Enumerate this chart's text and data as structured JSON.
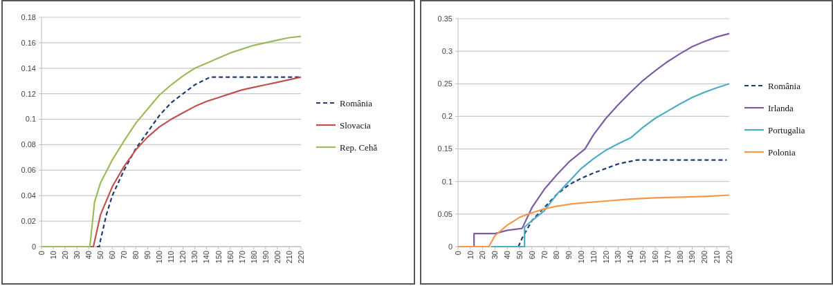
{
  "chart_data": [
    {
      "type": "line",
      "xlim": [
        0,
        220
      ],
      "xticks": [
        0,
        10,
        20,
        30,
        40,
        50,
        60,
        70,
        80,
        90,
        100,
        110,
        120,
        130,
        140,
        150,
        160,
        170,
        180,
        190,
        200,
        210,
        220
      ],
      "ylim": [
        0,
        0.18
      ],
      "yticks": [
        0,
        0.02,
        0.04,
        0.06,
        0.08,
        0.1,
        0.12,
        0.14,
        0.16,
        0.18
      ],
      "grid": "y",
      "legend": "right",
      "series": [
        {
          "name": "România",
          "color": "#1f3b70",
          "line_style": "dashed",
          "x": [
            0,
            49,
            50,
            55,
            60,
            70,
            80,
            90,
            100,
            110,
            120,
            130,
            143,
            220
          ],
          "values": [
            0,
            0,
            0.005,
            0.025,
            0.04,
            0.06,
            0.077,
            0.09,
            0.103,
            0.113,
            0.12,
            0.127,
            0.133,
            0.133
          ]
        },
        {
          "name": "Slovacia",
          "color": "#c0504d",
          "line_style": "solid",
          "x": [
            0,
            44,
            50,
            60,
            70,
            80,
            90,
            100,
            110,
            120,
            130,
            140,
            150,
            160,
            170,
            180,
            190,
            200,
            210,
            220
          ],
          "values": [
            0,
            0,
            0.025,
            0.047,
            0.063,
            0.076,
            0.086,
            0.094,
            0.1,
            0.105,
            0.11,
            0.114,
            0.117,
            0.12,
            0.123,
            0.125,
            0.127,
            0.129,
            0.131,
            0.133
          ]
        },
        {
          "name": "Rep. Cehă",
          "color": "#9bbb59",
          "line_style": "solid",
          "x": [
            0,
            41,
            45,
            50,
            60,
            70,
            80,
            90,
            100,
            110,
            120,
            130,
            140,
            150,
            160,
            170,
            180,
            190,
            200,
            210,
            220
          ],
          "values": [
            0,
            0,
            0.035,
            0.05,
            0.068,
            0.083,
            0.097,
            0.108,
            0.119,
            0.127,
            0.134,
            0.14,
            0.144,
            0.148,
            0.152,
            0.155,
            0.158,
            0.16,
            0.162,
            0.164,
            0.165
          ]
        }
      ]
    },
    {
      "type": "line",
      "xlim": [
        0,
        220
      ],
      "xticks": [
        0,
        10,
        20,
        30,
        40,
        50,
        60,
        70,
        80,
        90,
        100,
        110,
        120,
        130,
        140,
        150,
        160,
        170,
        180,
        190,
        200,
        210,
        220
      ],
      "ylim": [
        0,
        0.35
      ],
      "yticks": [
        0,
        0.05,
        0.1,
        0.15,
        0.2,
        0.25,
        0.3,
        0.35
      ],
      "grid": "y",
      "legend": "right",
      "series": [
        {
          "name": "România",
          "color": "#1f3b70",
          "line_style": "dashed",
          "x": [
            49,
            52,
            60,
            70,
            80,
            90,
            100,
            110,
            120,
            130,
            145,
            218
          ],
          "values": [
            0,
            0.013,
            0.04,
            0.06,
            0.08,
            0.095,
            0.105,
            0.113,
            0.12,
            0.127,
            0.133,
            0.133
          ]
        },
        {
          "name": "Irlanda",
          "color": "#7b5ba6",
          "line_style": "solid",
          "x": [
            0,
            13,
            13,
            30,
            40,
            52,
            55,
            60,
            70,
            80,
            90,
            103,
            110,
            120,
            130,
            140,
            150,
            160,
            170,
            180,
            190,
            200,
            210,
            220
          ],
          "values": [
            0,
            0,
            0.02,
            0.02,
            0.025,
            0.028,
            0.04,
            0.06,
            0.088,
            0.11,
            0.13,
            0.15,
            0.172,
            0.197,
            0.218,
            0.237,
            0.255,
            0.27,
            0.284,
            0.296,
            0.307,
            0.315,
            0.322,
            0.327
          ]
        },
        {
          "name": "Portugalia",
          "color": "#4bacc6",
          "line_style": "solid",
          "x": [
            27,
            54,
            54,
            60,
            70,
            80,
            90,
            100,
            110,
            120,
            130,
            140,
            150,
            160,
            170,
            180,
            190,
            200,
            210,
            220
          ],
          "values": [
            0,
            0,
            0.03,
            0.04,
            0.055,
            0.08,
            0.1,
            0.12,
            0.135,
            0.148,
            0.158,
            0.167,
            0.183,
            0.197,
            0.208,
            0.219,
            0.229,
            0.237,
            0.244,
            0.25
          ]
        },
        {
          "name": "Polonia",
          "color": "#f79646",
          "line_style": "solid",
          "x": [
            0,
            25,
            30,
            40,
            50,
            60,
            70,
            80,
            90,
            100,
            120,
            140,
            160,
            180,
            200,
            220
          ],
          "values": [
            0,
            0,
            0.017,
            0.033,
            0.045,
            0.052,
            0.058,
            0.062,
            0.065,
            0.067,
            0.07,
            0.073,
            0.075,
            0.076,
            0.077,
            0.079
          ]
        }
      ]
    }
  ]
}
